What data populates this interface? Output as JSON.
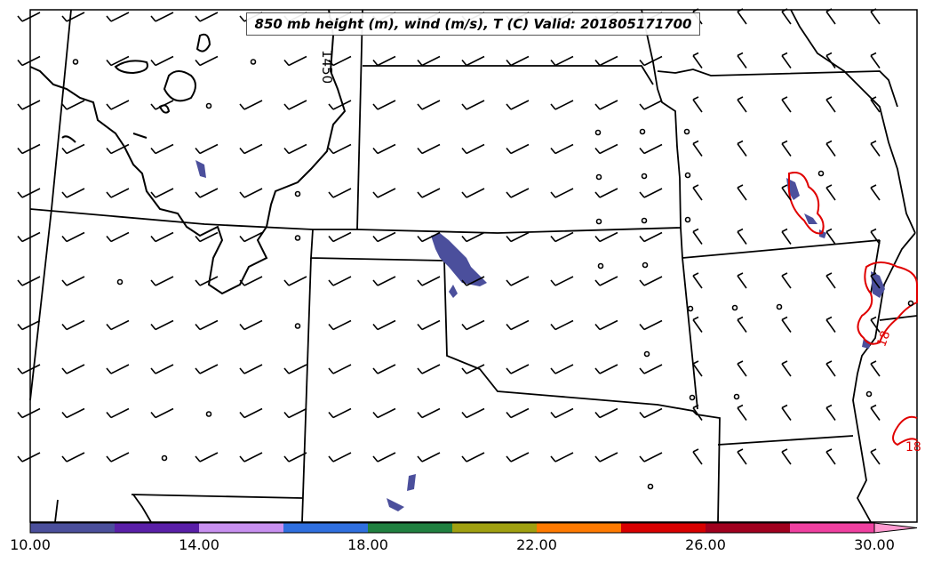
{
  "title": "850 mb height (m), wind (m/s), T (C) Valid: 201805171700",
  "height_contour_label": "1450",
  "temperature_labels": [
    "18",
    "18"
  ],
  "colorbar": {
    "ticks": [
      "10.00",
      "14.00",
      "18.00",
      "22.00",
      "26.00",
      "30.00"
    ],
    "colors": [
      "#4b4f9c",
      "#5a1fa8",
      "#c890f0",
      "#2f6fdf",
      "#208040",
      "#a0a010",
      "#ff7a00",
      "#d80000",
      "#a0001e",
      "#f040a0",
      "#ff9ad0"
    ],
    "extend": "max"
  },
  "colors": {
    "height_contour": "#000000",
    "temperature_contour": "#e00000",
    "shading": "#4b4f9c"
  }
}
